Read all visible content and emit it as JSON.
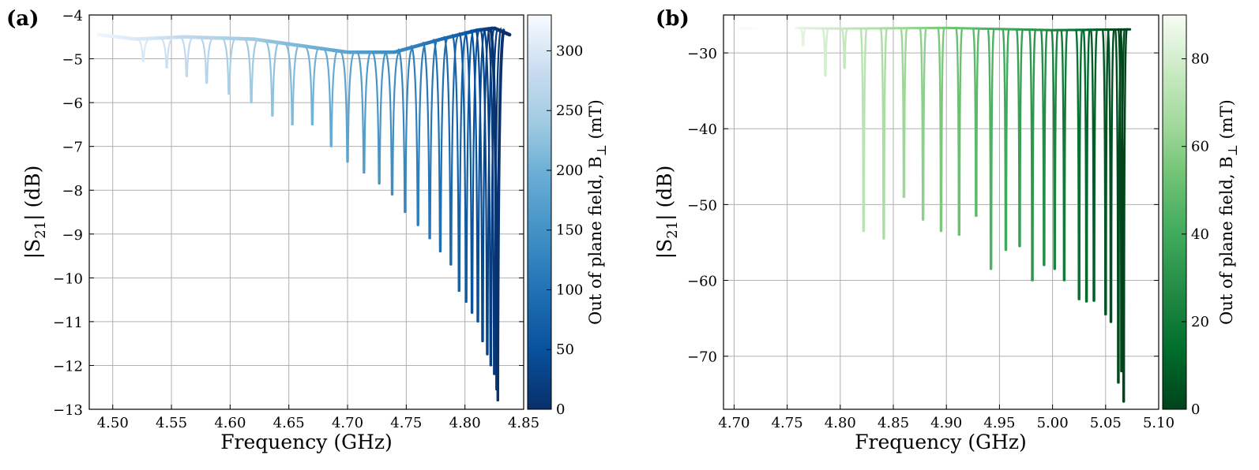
{
  "chart_data": [
    {
      "panel": "(a)",
      "type": "line",
      "xlabel": "Frequency (GHz)",
      "ylabel_main": "|S",
      "ylabel_sub": "21",
      "ylabel_tail": "| (dB)",
      "xlim": [
        4.48,
        4.85
      ],
      "ylim": [
        -13,
        -4
      ],
      "xticks": [
        "4.50",
        "4.55",
        "4.60",
        "4.65",
        "4.70",
        "4.75",
        "4.80",
        "4.85"
      ],
      "xtick_values": [
        4.5,
        4.55,
        4.6,
        4.65,
        4.7,
        4.75,
        4.8,
        4.85
      ],
      "yticks": [
        "−4",
        "−5",
        "−6",
        "−7",
        "−8",
        "−9",
        "−10",
        "−11",
        "−12",
        "−13"
      ],
      "ytick_values": [
        -4,
        -5,
        -6,
        -7,
        -8,
        -9,
        -10,
        -11,
        -12,
        -13
      ],
      "colormap": "Blues",
      "colorbar": {
        "label_main": "Out of plane field, B",
        "label_sub": "⊥",
        "label_tail": " (mT)",
        "range": [
          0,
          330
        ],
        "ticks": [
          "0",
          "50",
          "100",
          "150",
          "200",
          "250",
          "300"
        ],
        "tick_values": [
          0,
          50,
          100,
          150,
          200,
          250,
          300
        ]
      },
      "start_freq": 4.488,
      "end_freq": 4.838,
      "resonances": [
        {
          "f": 4.526,
          "dip": -5.05,
          "field": 300
        },
        {
          "f": 4.546,
          "dip": -5.2,
          "field": 288
        },
        {
          "f": 4.563,
          "dip": -5.4,
          "field": 276
        },
        {
          "f": 4.58,
          "dip": -5.55,
          "field": 264
        },
        {
          "f": 4.599,
          "dip": -5.8,
          "field": 252
        },
        {
          "f": 4.618,
          "dip": -6.0,
          "field": 240
        },
        {
          "f": 4.636,
          "dip": -6.3,
          "field": 228
        },
        {
          "f": 4.653,
          "dip": -6.5,
          "field": 216
        },
        {
          "f": 4.67,
          "dip": -6.5,
          "field": 204
        },
        {
          "f": 4.686,
          "dip": -7.0,
          "field": 192
        },
        {
          "f": 4.7,
          "dip": -7.35,
          "field": 180
        },
        {
          "f": 4.714,
          "dip": -7.6,
          "field": 168
        },
        {
          "f": 4.727,
          "dip": -7.85,
          "field": 156
        },
        {
          "f": 4.738,
          "dip": -8.1,
          "field": 144
        },
        {
          "f": 4.749,
          "dip": -8.5,
          "field": 132
        },
        {
          "f": 4.76,
          "dip": -8.8,
          "field": 120
        },
        {
          "f": 4.77,
          "dip": -9.1,
          "field": 108
        },
        {
          "f": 4.779,
          "dip": -9.4,
          "field": 96
        },
        {
          "f": 4.788,
          "dip": -9.7,
          "field": 86
        },
        {
          "f": 4.795,
          "dip": -10.3,
          "field": 76
        },
        {
          "f": 4.801,
          "dip": -10.55,
          "field": 66
        },
        {
          "f": 4.806,
          "dip": -10.8,
          "field": 56
        },
        {
          "f": 4.811,
          "dip": -11.0,
          "field": 46
        },
        {
          "f": 4.815,
          "dip": -11.45,
          "field": 36
        },
        {
          "f": 4.819,
          "dip": -11.75,
          "field": 28
        },
        {
          "f": 4.822,
          "dip": -12.0,
          "field": 20
        },
        {
          "f": 4.825,
          "dip": -12.2,
          "field": 12
        },
        {
          "f": 4.827,
          "dip": -12.55,
          "field": 6
        },
        {
          "f": 4.828,
          "dip": -12.8,
          "field": 2
        }
      ],
      "baseline": [
        [
          4.488,
          -4.45
        ],
        [
          4.52,
          -4.55
        ],
        [
          4.56,
          -4.5
        ],
        [
          4.62,
          -4.55
        ],
        [
          4.66,
          -4.7
        ],
        [
          4.7,
          -4.85
        ],
        [
          4.74,
          -4.85
        ],
        [
          4.78,
          -4.55
        ],
        [
          4.81,
          -4.35
        ],
        [
          4.825,
          -4.3
        ],
        [
          4.838,
          -4.45
        ]
      ]
    },
    {
      "panel": "(b)",
      "type": "line",
      "xlabel": "Frequency (GHz)",
      "ylabel_main": "|S",
      "ylabel_sub": "21",
      "ylabel_tail": "| (dB)",
      "xlim": [
        4.69,
        5.1
      ],
      "ylim": [
        -77,
        -25
      ],
      "xticks": [
        "4.70",
        "4.75",
        "4.80",
        "4.85",
        "4.90",
        "4.95",
        "5.00",
        "5.05",
        "5.10"
      ],
      "xtick_values": [
        4.7,
        4.75,
        4.8,
        4.85,
        4.9,
        4.95,
        5.0,
        5.05,
        5.1
      ],
      "yticks": [
        "−30",
        "−40",
        "−50",
        "−60",
        "−70"
      ],
      "ytick_values": [
        -30,
        -40,
        -50,
        -60,
        -70
      ],
      "colormap": "Greens",
      "colorbar": {
        "label_main": "Out of plane field, B",
        "label_sub": "⊥",
        "label_tail": " (mT)",
        "range": [
          0,
          90
        ],
        "ticks": [
          "0",
          "20",
          "40",
          "60",
          "80"
        ],
        "tick_values": [
          0,
          20,
          40,
          60,
          80
        ]
      },
      "start_freq": 4.705,
      "end_freq": 5.073,
      "resonances": [
        {
          "f": 4.765,
          "dip": -29,
          "field": 84
        },
        {
          "f": 4.786,
          "dip": -33,
          "field": 80
        },
        {
          "f": 4.804,
          "dip": -32,
          "field": 76
        },
        {
          "f": 4.822,
          "dip": -53.5,
          "field": 72
        },
        {
          "f": 4.841,
          "dip": -54.5,
          "field": 68
        },
        {
          "f": 4.86,
          "dip": -49,
          "field": 64
        },
        {
          "f": 4.878,
          "dip": -52,
          "field": 60
        },
        {
          "f": 4.895,
          "dip": -53.5,
          "field": 56
        },
        {
          "f": 4.912,
          "dip": -54,
          "field": 52
        },
        {
          "f": 4.928,
          "dip": -51.5,
          "field": 48
        },
        {
          "f": 4.942,
          "dip": -58.5,
          "field": 44
        },
        {
          "f": 4.956,
          "dip": -56,
          "field": 40
        },
        {
          "f": 4.969,
          "dip": -55.5,
          "field": 36
        },
        {
          "f": 4.981,
          "dip": -60,
          "field": 32
        },
        {
          "f": 4.992,
          "dip": -58,
          "field": 28
        },
        {
          "f": 5.002,
          "dip": -58.5,
          "field": 24
        },
        {
          "f": 5.011,
          "dip": -60,
          "field": 20
        },
        {
          "f": 5.025,
          "dip": -62.5,
          "field": 16
        },
        {
          "f": 5.032,
          "dip": -62.8,
          "field": 12
        },
        {
          "f": 5.039,
          "dip": -62.7,
          "field": 9
        },
        {
          "f": 5.05,
          "dip": -64.5,
          "field": 6
        },
        {
          "f": 5.055,
          "dip": -65.5,
          "field": 4
        },
        {
          "f": 5.062,
          "dip": -73.5,
          "field": 2
        },
        {
          "f": 5.065,
          "dip": -72,
          "field": 1
        },
        {
          "f": 5.067,
          "dip": -76,
          "field": 0
        }
      ],
      "baseline": [
        [
          4.705,
          -26.8
        ],
        [
          4.75,
          -26.7
        ],
        [
          4.8,
          -26.8
        ],
        [
          4.9,
          -26.7
        ],
        [
          5.0,
          -27.0
        ],
        [
          5.073,
          -26.9
        ]
      ],
      "gaps": [
        [
          4.722,
          4.757
        ]
      ]
    }
  ]
}
